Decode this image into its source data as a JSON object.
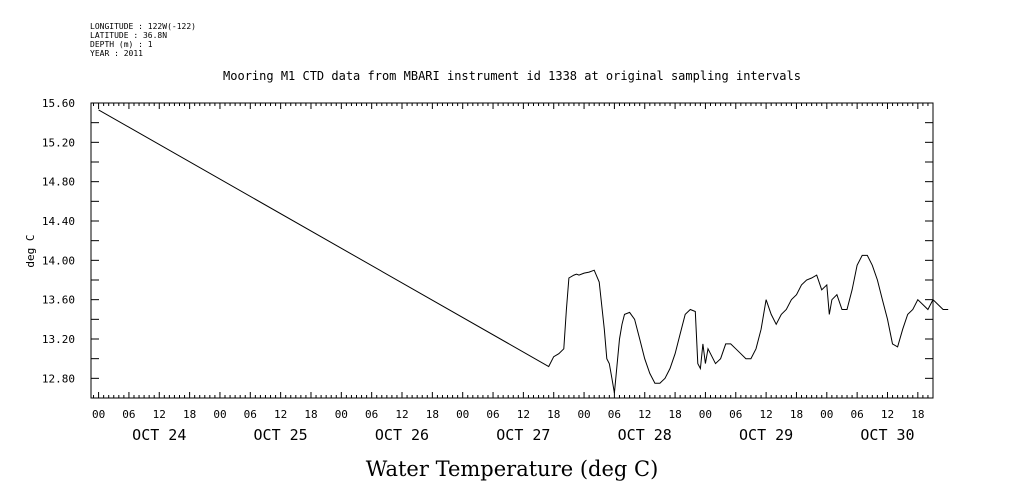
{
  "metadata": [
    "LONGITUDE : 122W(-122)",
    "LATITUDE : 36.8N",
    "DEPTH (m) : 1",
    "YEAR : 2011"
  ],
  "chart_data": {
    "type": "line",
    "title": "Mooring M1 CTD data from MBARI instrument id 1338 at original sampling intervals",
    "xlabel": "Water Temperature (deg C)",
    "ylabel": "deg C",
    "ylim": [
      12.6,
      15.6
    ],
    "yticks": [
      12.8,
      13.2,
      13.6,
      14.0,
      14.4,
      14.8,
      15.2,
      15.6
    ],
    "ytick_labels": [
      "12.80",
      "13.20",
      "13.60",
      "14.00",
      "14.40",
      "14.80",
      "15.20",
      "15.60"
    ],
    "xlim_hours": [
      -1.5,
      165
    ],
    "hour_tick_labels": [
      "00",
      "06",
      "12",
      "18",
      "00",
      "06",
      "12",
      "18",
      "00",
      "06",
      "12",
      "18",
      "00",
      "06",
      "12",
      "18",
      "00",
      "06",
      "12",
      "18",
      "00",
      "06",
      "12",
      "18",
      "00",
      "06",
      "12",
      "18"
    ],
    "day_labels": [
      "OCT 24",
      "OCT 25",
      "OCT 26",
      "OCT 27",
      "OCT 28",
      "OCT 29",
      "OCT 30"
    ],
    "grid": false,
    "series": [
      {
        "x": [
          "2011-10-24 00:00",
          "2011-10-27 17:00",
          "2011-10-27 18:00",
          "2011-10-27 19:00",
          "2011-10-27 20:00",
          "2011-10-27 20:30",
          "2011-10-27 21:00",
          "2011-10-27 22:00",
          "2011-10-27 22:30",
          "2011-10-27 23:00",
          "2011-10-28 00:00",
          "2011-10-28 01:00",
          "2011-10-28 02:00",
          "2011-10-28 03:00",
          "2011-10-28 04:00",
          "2011-10-28 04:30",
          "2011-10-28 05:00",
          "2011-10-28 05:30",
          "2011-10-28 06:00",
          "2011-10-28 06:30",
          "2011-10-28 07:00",
          "2011-10-28 07:30",
          "2011-10-28 08:00",
          "2011-10-28 09:00",
          "2011-10-28 10:00",
          "2011-10-28 11:00",
          "2011-10-28 12:00",
          "2011-10-28 13:00",
          "2011-10-28 14:00",
          "2011-10-28 15:00",
          "2011-10-28 16:00",
          "2011-10-28 17:00",
          "2011-10-28 18:00",
          "2011-10-28 19:00",
          "2011-10-28 20:00",
          "2011-10-28 21:00",
          "2011-10-28 22:00",
          "2011-10-28 22:30",
          "2011-10-28 23:00",
          "2011-10-28 23:30",
          "2011-10-29 00:00",
          "2011-10-29 00:30",
          "2011-10-29 01:00",
          "2011-10-29 02:00",
          "2011-10-29 03:00",
          "2011-10-29 04:00",
          "2011-10-29 05:00",
          "2011-10-29 06:00",
          "2011-10-29 07:00",
          "2011-10-29 08:00",
          "2011-10-29 09:00",
          "2011-10-29 10:00",
          "2011-10-29 11:00",
          "2011-10-29 12:00",
          "2011-10-29 13:00",
          "2011-10-29 14:00",
          "2011-10-29 15:00",
          "2011-10-29 16:00",
          "2011-10-29 17:00",
          "2011-10-29 18:00",
          "2011-10-29 19:00",
          "2011-10-29 20:00",
          "2011-10-29 21:00",
          "2011-10-29 22:00",
          "2011-10-29 23:00",
          "2011-10-30 00:00",
          "2011-10-30 00:30",
          "2011-10-30 01:00",
          "2011-10-30 02:00",
          "2011-10-30 03:00",
          "2011-10-30 04:00",
          "2011-10-30 05:00",
          "2011-10-30 06:00",
          "2011-10-30 07:00",
          "2011-10-30 08:00",
          "2011-10-30 09:00",
          "2011-10-30 10:00",
          "2011-10-30 11:00",
          "2011-10-30 12:00",
          "2011-10-30 13:00",
          "2011-10-30 14:00",
          "2011-10-30 15:00",
          "2011-10-30 16:00",
          "2011-10-30 17:00",
          "2011-10-30 18:00",
          "2011-10-30 19:00",
          "2011-10-30 20:00",
          "2011-10-30 21:00",
          "2011-10-30 22:00",
          "2011-10-30 23:00",
          "2011-10-31 00:00"
        ],
        "values": [
          15.53,
          12.92,
          13.02,
          13.05,
          13.1,
          13.5,
          13.82,
          13.85,
          13.86,
          13.85,
          13.87,
          13.88,
          13.9,
          13.78,
          13.3,
          13.0,
          12.95,
          12.8,
          12.65,
          12.92,
          13.2,
          13.35,
          13.45,
          13.47,
          13.4,
          13.2,
          13.0,
          12.85,
          12.75,
          12.75,
          12.8,
          12.9,
          13.05,
          13.25,
          13.45,
          13.5,
          13.48,
          12.95,
          12.9,
          13.15,
          12.95,
          13.1,
          13.05,
          12.95,
          13.0,
          13.15,
          13.15,
          13.1,
          13.05,
          13.0,
          13.0,
          13.1,
          13.3,
          13.6,
          13.45,
          13.35,
          13.45,
          13.5,
          13.6,
          13.65,
          13.75,
          13.8,
          13.82,
          13.85,
          13.7,
          13.75,
          13.45,
          13.6,
          13.65,
          13.5,
          13.5,
          13.7,
          13.95,
          14.05,
          14.05,
          13.95,
          13.8,
          13.6,
          13.4,
          13.15,
          13.12,
          13.3,
          13.45,
          13.5,
          13.6,
          13.55,
          13.5,
          13.6,
          13.55,
          13.5,
          13.5
        ]
      }
    ]
  }
}
